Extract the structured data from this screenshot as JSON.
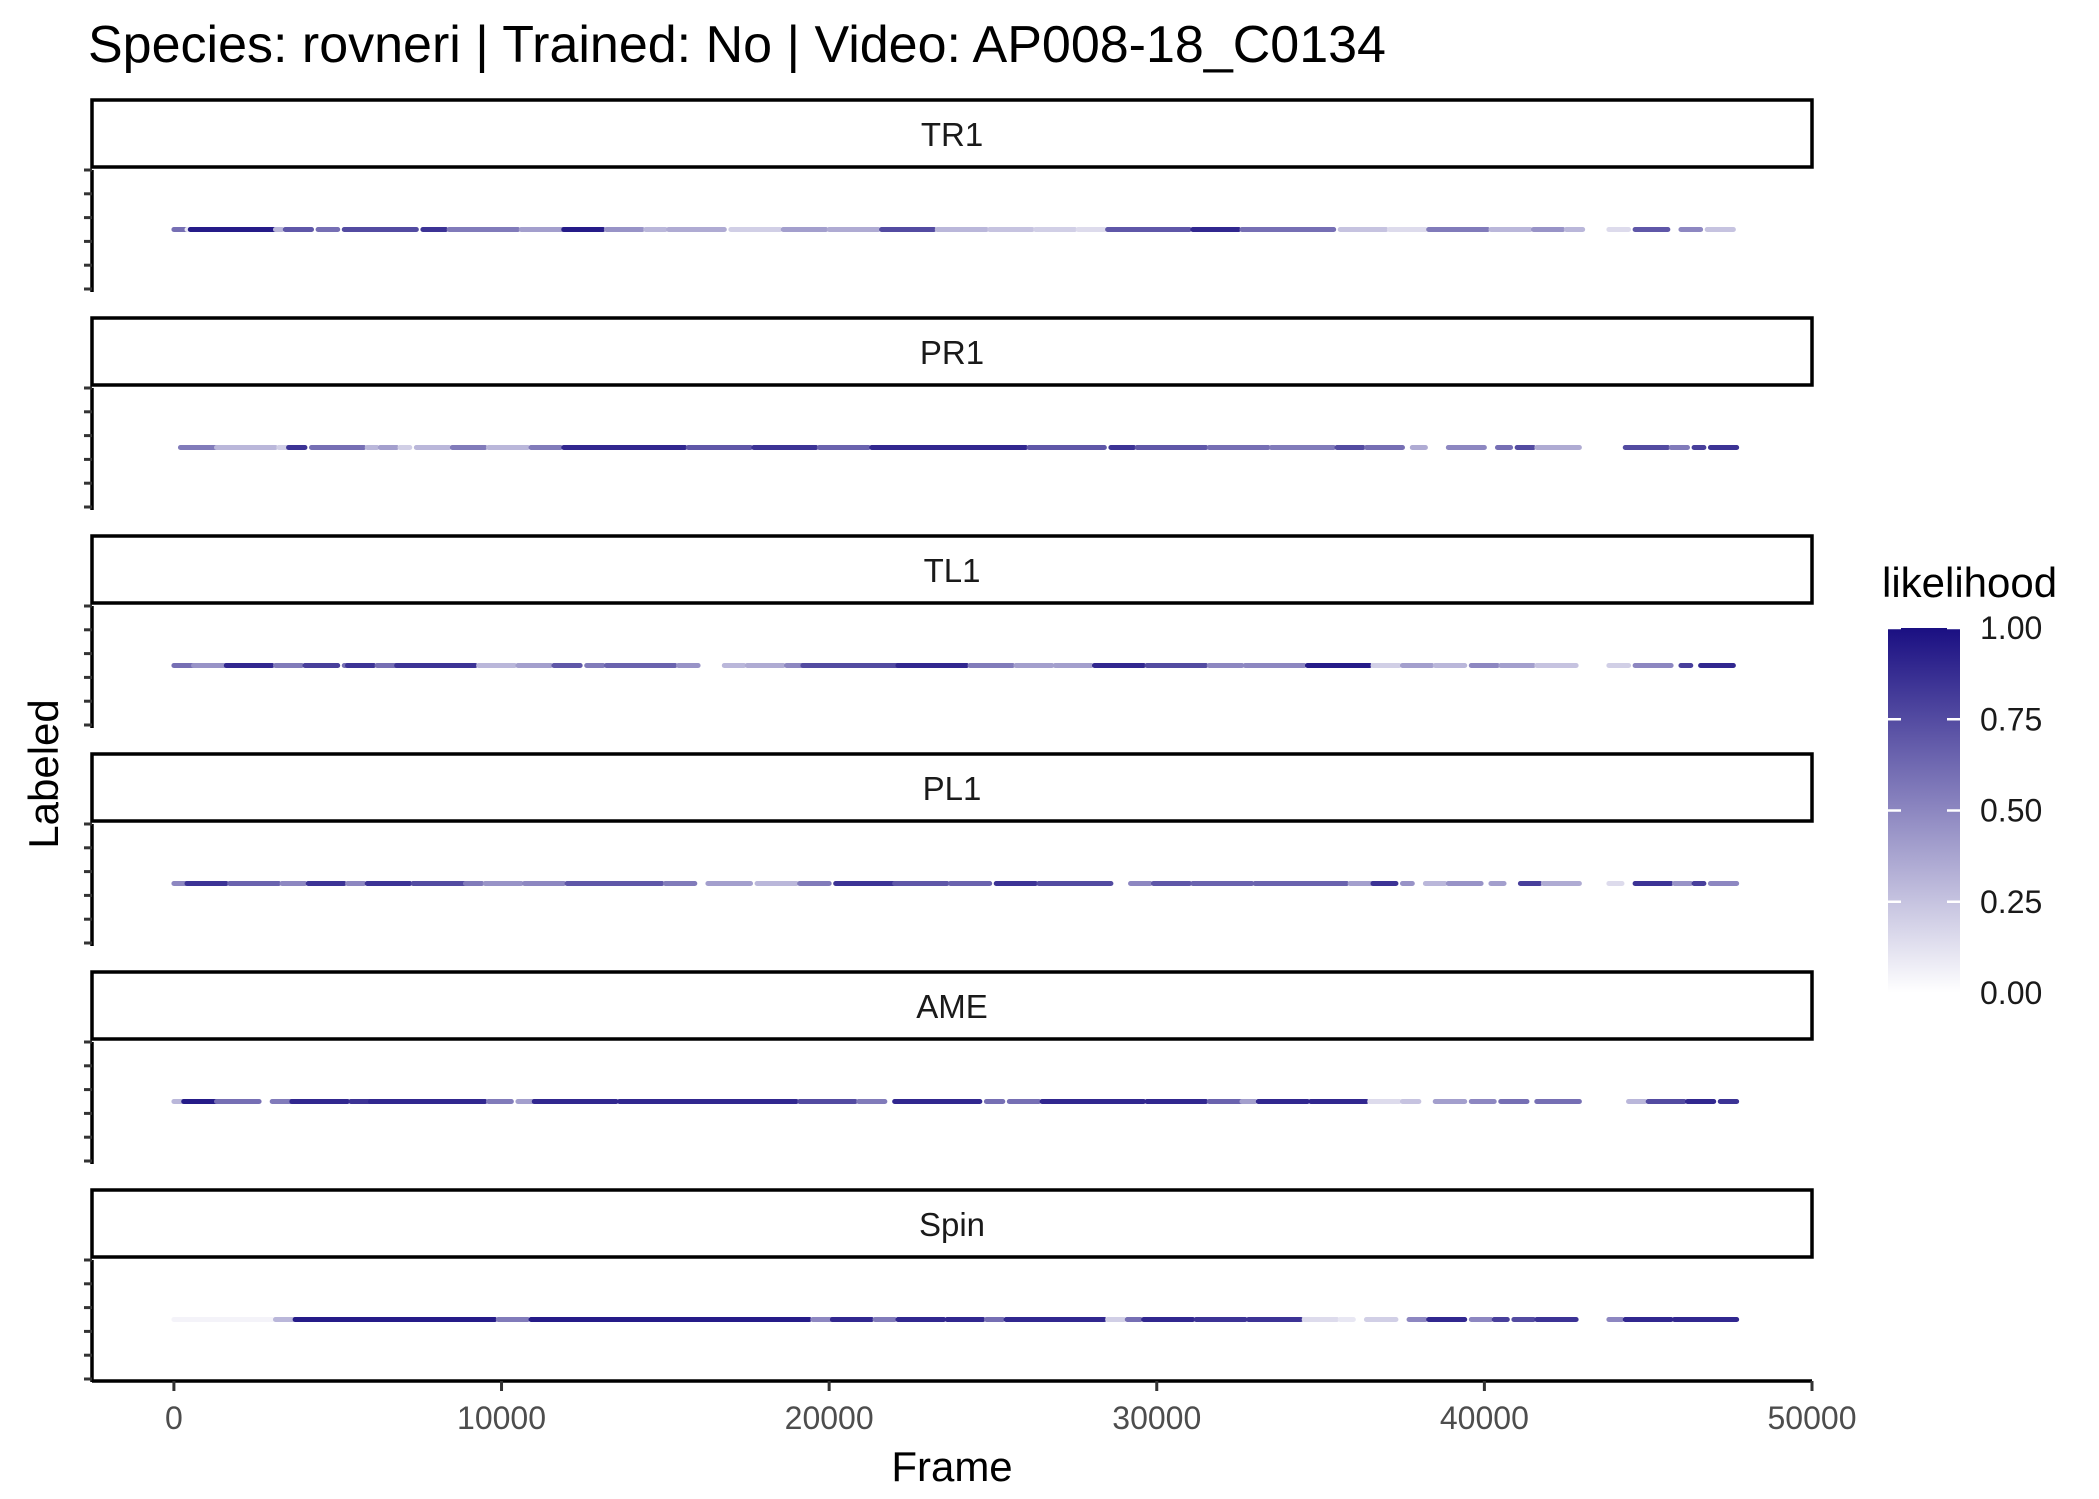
{
  "chart_data": {
    "type": "scatter",
    "title": "Species: rovneri | Trained: No | Video: AP008-18_C0134",
    "xlabel": "Frame",
    "ylabel": "Labeled",
    "xlim": [
      -2500,
      50000
    ],
    "x_ticks": [
      0,
      10000,
      20000,
      30000,
      40000,
      50000
    ],
    "x_tick_labels": [
      "0",
      "10000",
      "20000",
      "30000",
      "40000",
      "50000"
    ],
    "grid": false,
    "colorbar": {
      "title": "likelihood",
      "range": [
        0,
        1
      ],
      "low_color": "#ffffff",
      "high_color": "#1a0f82",
      "tick_values": [
        0,
        0.25,
        0.5,
        0.75,
        1
      ],
      "tick_labels": [
        "0.00",
        "0.25",
        "0.50",
        "0.75",
        "1.00"
      ],
      "placement": "right"
    },
    "facets": [
      {
        "label": "TR1",
        "segments": [
          [
            0,
            400,
            0.6
          ],
          [
            400,
            500,
            0.1
          ],
          [
            500,
            3100,
            0.95
          ],
          [
            3100,
            3300,
            0.3
          ],
          [
            3400,
            4200,
            0.7
          ],
          [
            4400,
            5000,
            0.6
          ],
          [
            5200,
            7400,
            0.75
          ],
          [
            7600,
            8300,
            0.85
          ],
          [
            8400,
            10500,
            0.55
          ],
          [
            10600,
            11900,
            0.4
          ],
          [
            11900,
            13100,
            0.95
          ],
          [
            13200,
            14300,
            0.45
          ],
          [
            14400,
            15000,
            0.3
          ],
          [
            15100,
            16800,
            0.35
          ],
          [
            17000,
            18500,
            0.2
          ],
          [
            18600,
            19900,
            0.4
          ],
          [
            20000,
            21500,
            0.35
          ],
          [
            21600,
            23200,
            0.75
          ],
          [
            23300,
            24800,
            0.3
          ],
          [
            24900,
            26200,
            0.25
          ],
          [
            26300,
            27500,
            0.2
          ],
          [
            27600,
            28400,
            0.15
          ],
          [
            28500,
            31000,
            0.7
          ],
          [
            31100,
            32500,
            0.9
          ],
          [
            32600,
            35400,
            0.6
          ],
          [
            35600,
            37000,
            0.25
          ],
          [
            37100,
            38200,
            0.15
          ],
          [
            38300,
            40100,
            0.55
          ],
          [
            40200,
            41400,
            0.3
          ],
          [
            41500,
            42400,
            0.45
          ],
          [
            42500,
            43000,
            0.3
          ],
          [
            43800,
            44400,
            0.15
          ],
          [
            44600,
            45600,
            0.7
          ],
          [
            46000,
            46600,
            0.5
          ],
          [
            46800,
            47600,
            0.25
          ]
        ]
      },
      {
        "label": "PR1",
        "segments": [
          [
            200,
            1300,
            0.55
          ],
          [
            1300,
            3100,
            0.3
          ],
          [
            3200,
            3600,
            0.2
          ],
          [
            3500,
            4000,
            0.85
          ],
          [
            4200,
            5800,
            0.6
          ],
          [
            5900,
            6200,
            0.3
          ],
          [
            6300,
            6800,
            0.4
          ],
          [
            6900,
            7200,
            0.2
          ],
          [
            7400,
            8400,
            0.3
          ],
          [
            8500,
            9500,
            0.55
          ],
          [
            9600,
            10800,
            0.3
          ],
          [
            10900,
            11800,
            0.55
          ],
          [
            11900,
            15600,
            0.9
          ],
          [
            15700,
            17600,
            0.7
          ],
          [
            17700,
            19600,
            0.85
          ],
          [
            19700,
            21200,
            0.65
          ],
          [
            21300,
            26000,
            0.9
          ],
          [
            26100,
            28400,
            0.7
          ],
          [
            28600,
            29300,
            0.85
          ],
          [
            29400,
            31500,
            0.7
          ],
          [
            31600,
            33400,
            0.6
          ],
          [
            33500,
            35400,
            0.55
          ],
          [
            35500,
            36300,
            0.75
          ],
          [
            36400,
            37500,
            0.6
          ],
          [
            37800,
            38200,
            0.35
          ],
          [
            38900,
            40000,
            0.5
          ],
          [
            40400,
            40800,
            0.6
          ],
          [
            41000,
            41500,
            0.75
          ],
          [
            41600,
            42900,
            0.35
          ],
          [
            44300,
            45600,
            0.75
          ],
          [
            45700,
            46200,
            0.55
          ],
          [
            46400,
            46700,
            0.8
          ],
          [
            46900,
            47700,
            0.85
          ]
        ]
      },
      {
        "label": "TL1",
        "segments": [
          [
            0,
            600,
            0.6
          ],
          [
            600,
            1600,
            0.45
          ],
          [
            1600,
            3000,
            0.9
          ],
          [
            3100,
            3900,
            0.55
          ],
          [
            4000,
            5000,
            0.8
          ],
          [
            5200,
            5800,
            0.6
          ],
          [
            5300,
            6100,
            0.85
          ],
          [
            6200,
            6900,
            0.6
          ],
          [
            6800,
            9200,
            0.85
          ],
          [
            9300,
            10400,
            0.3
          ],
          [
            10500,
            11500,
            0.4
          ],
          [
            11600,
            12400,
            0.7
          ],
          [
            12600,
            13100,
            0.55
          ],
          [
            13200,
            15300,
            0.65
          ],
          [
            15400,
            16000,
            0.45
          ],
          [
            16800,
            17400,
            0.3
          ],
          [
            17500,
            18600,
            0.35
          ],
          [
            18700,
            19200,
            0.5
          ],
          [
            19200,
            22100,
            0.75
          ],
          [
            22100,
            24200,
            0.9
          ],
          [
            24300,
            25600,
            0.55
          ],
          [
            25700,
            26800,
            0.4
          ],
          [
            26900,
            28000,
            0.4
          ],
          [
            28100,
            29600,
            0.9
          ],
          [
            29700,
            31500,
            0.75
          ],
          [
            31600,
            32600,
            0.5
          ],
          [
            32700,
            34500,
            0.5
          ],
          [
            34600,
            36500,
            0.95
          ],
          [
            36600,
            37400,
            0.2
          ],
          [
            37500,
            38400,
            0.4
          ],
          [
            38500,
            39400,
            0.3
          ],
          [
            39600,
            40400,
            0.5
          ],
          [
            40500,
            41500,
            0.4
          ],
          [
            41600,
            42800,
            0.25
          ],
          [
            43800,
            44400,
            0.2
          ],
          [
            44600,
            45700,
            0.5
          ],
          [
            46000,
            46300,
            0.8
          ],
          [
            46600,
            47600,
            0.9
          ]
        ]
      },
      {
        "label": "PL1",
        "segments": [
          [
            0,
            400,
            0.5
          ],
          [
            400,
            1600,
            0.85
          ],
          [
            1700,
            3200,
            0.65
          ],
          [
            3300,
            4000,
            0.5
          ],
          [
            4100,
            5200,
            0.85
          ],
          [
            5300,
            5800,
            0.5
          ],
          [
            5900,
            7200,
            0.85
          ],
          [
            7300,
            8900,
            0.75
          ],
          [
            8900,
            9400,
            0.55
          ],
          [
            9500,
            10600,
            0.45
          ],
          [
            10700,
            11900,
            0.5
          ],
          [
            12000,
            14900,
            0.7
          ],
          [
            15000,
            15900,
            0.55
          ],
          [
            16300,
            17600,
            0.4
          ],
          [
            17800,
            19000,
            0.3
          ],
          [
            19100,
            20000,
            0.55
          ],
          [
            20200,
            22000,
            0.85
          ],
          [
            22000,
            23600,
            0.7
          ],
          [
            23700,
            24900,
            0.65
          ],
          [
            25100,
            26300,
            0.85
          ],
          [
            26400,
            28600,
            0.75
          ],
          [
            29200,
            29800,
            0.5
          ],
          [
            29900,
            31000,
            0.7
          ],
          [
            31100,
            32900,
            0.65
          ],
          [
            33000,
            35800,
            0.65
          ],
          [
            35900,
            36600,
            0.4
          ],
          [
            36600,
            37300,
            0.85
          ],
          [
            37500,
            37800,
            0.45
          ],
          [
            38200,
            38800,
            0.3
          ],
          [
            38900,
            39900,
            0.45
          ],
          [
            40200,
            40600,
            0.4
          ],
          [
            41100,
            41700,
            0.8
          ],
          [
            41800,
            42900,
            0.35
          ],
          [
            43800,
            44200,
            0.15
          ],
          [
            44600,
            45700,
            0.85
          ],
          [
            45800,
            46300,
            0.45
          ],
          [
            46400,
            46700,
            0.8
          ],
          [
            46900,
            47700,
            0.5
          ]
        ]
      },
      {
        "label": "AME",
        "segments": [
          [
            0,
            300,
            0.3
          ],
          [
            300,
            1300,
            0.95
          ],
          [
            1300,
            2600,
            0.6
          ],
          [
            3000,
            3600,
            0.55
          ],
          [
            3600,
            5300,
            0.9
          ],
          [
            5400,
            6000,
            0.85
          ],
          [
            6000,
            9500,
            0.9
          ],
          [
            9600,
            10300,
            0.55
          ],
          [
            10500,
            11000,
            0.4
          ],
          [
            11000,
            13500,
            0.9
          ],
          [
            13600,
            19000,
            0.9
          ],
          [
            19100,
            20800,
            0.75
          ],
          [
            20900,
            21700,
            0.55
          ],
          [
            22000,
            24600,
            0.9
          ],
          [
            24800,
            25300,
            0.6
          ],
          [
            25500,
            26400,
            0.6
          ],
          [
            26500,
            28000,
            0.9
          ],
          [
            28000,
            29600,
            0.9
          ],
          [
            29700,
            31500,
            0.9
          ],
          [
            31600,
            32600,
            0.65
          ],
          [
            32600,
            33000,
            0.4
          ],
          [
            33100,
            34600,
            0.9
          ],
          [
            34700,
            36400,
            0.9
          ],
          [
            36500,
            37400,
            0.15
          ],
          [
            37500,
            38000,
            0.25
          ],
          [
            38500,
            39400,
            0.4
          ],
          [
            39600,
            40300,
            0.5
          ],
          [
            40500,
            41300,
            0.6
          ],
          [
            41600,
            42900,
            0.6
          ],
          [
            44400,
            44900,
            0.3
          ],
          [
            45000,
            46100,
            0.75
          ],
          [
            46200,
            47000,
            0.9
          ],
          [
            47200,
            47700,
            0.85
          ]
        ]
      },
      {
        "label": "Spin",
        "segments": [
          [
            0,
            3000,
            0.05
          ],
          [
            3100,
            3700,
            0.3
          ],
          [
            3700,
            9800,
            0.95
          ],
          [
            9900,
            10800,
            0.55
          ],
          [
            10900,
            19400,
            0.95
          ],
          [
            19500,
            20100,
            0.5
          ],
          [
            20100,
            21300,
            0.9
          ],
          [
            21400,
            22000,
            0.55
          ],
          [
            22100,
            23500,
            0.9
          ],
          [
            23600,
            24700,
            0.9
          ],
          [
            24800,
            25300,
            0.6
          ],
          [
            25400,
            28400,
            0.9
          ],
          [
            28500,
            29000,
            0.2
          ],
          [
            29100,
            29500,
            0.6
          ],
          [
            29600,
            31100,
            0.9
          ],
          [
            31200,
            32700,
            0.85
          ],
          [
            32800,
            34400,
            0.85
          ],
          [
            34500,
            35500,
            0.15
          ],
          [
            35600,
            36000,
            0.1
          ],
          [
            36400,
            37300,
            0.2
          ],
          [
            37700,
            38200,
            0.5
          ],
          [
            38300,
            39400,
            0.9
          ],
          [
            39600,
            40200,
            0.5
          ],
          [
            40300,
            40700,
            0.8
          ],
          [
            40900,
            41500,
            0.75
          ],
          [
            41600,
            42800,
            0.85
          ],
          [
            43800,
            44200,
            0.5
          ],
          [
            44300,
            45700,
            0.9
          ],
          [
            45800,
            47700,
            0.9
          ]
        ]
      }
    ]
  }
}
